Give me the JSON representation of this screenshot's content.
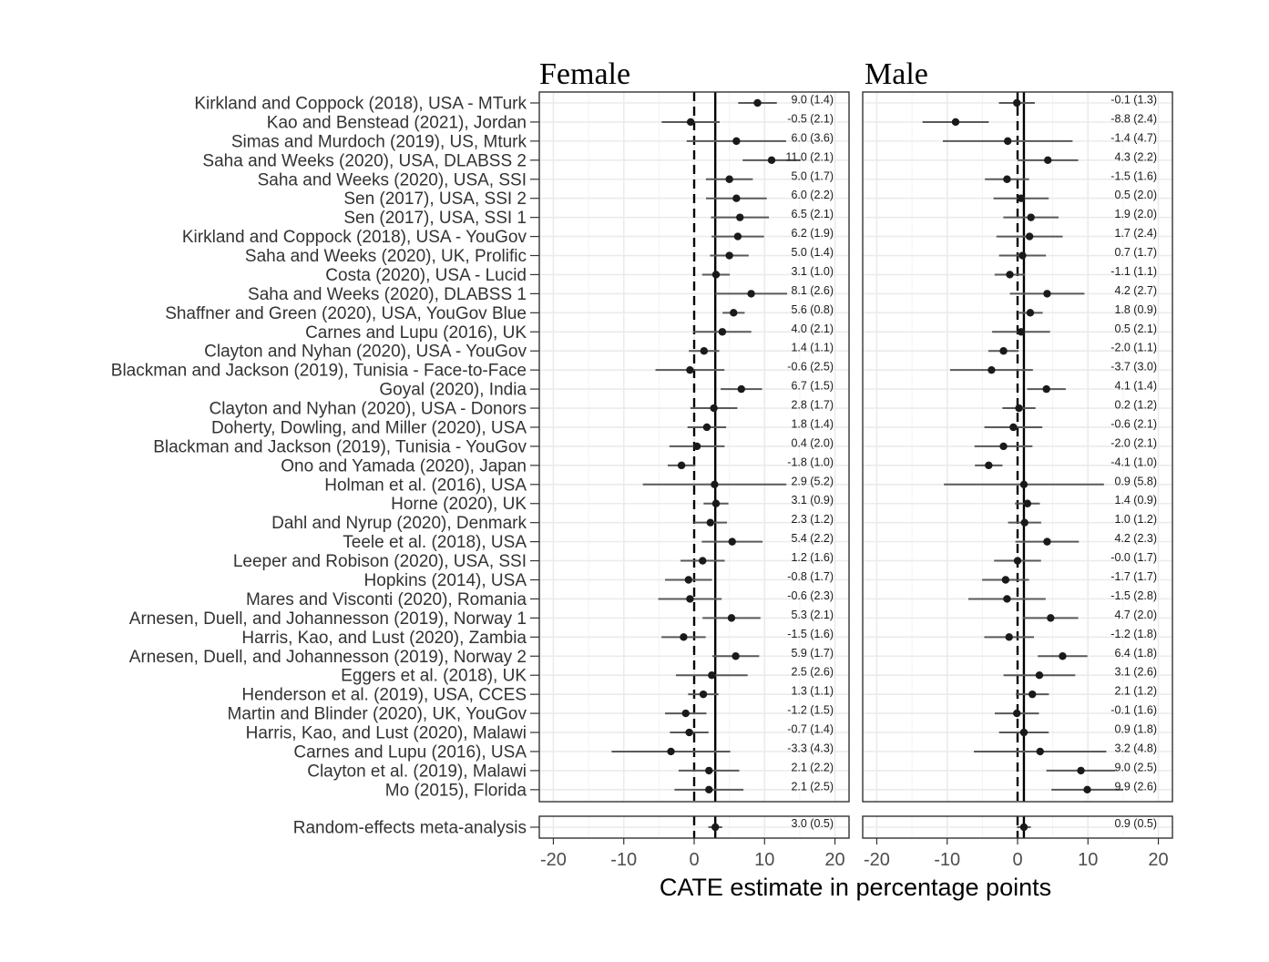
{
  "chart_data": {
    "type": "forest",
    "xlabel": "CATE estimate in percentage points",
    "xlim": [
      -22,
      22
    ],
    "xticks": [
      -20,
      -10,
      0,
      10,
      20
    ],
    "grid": true,
    "panels": [
      "Female",
      "Male"
    ],
    "studies": [
      {
        "name": "Kirkland and Coppock (2018), USA - MTurk",
        "female": {
          "est": 9.0,
          "se": 1.4,
          "label": "9.0 (1.4)"
        },
        "male": {
          "est": -0.1,
          "se": 1.3,
          "label": "-0.1 (1.3)"
        }
      },
      {
        "name": "Kao and Benstead (2021), Jordan",
        "female": {
          "est": -0.5,
          "se": 2.1,
          "label": "-0.5 (2.1)"
        },
        "male": {
          "est": -8.8,
          "se": 2.4,
          "label": "-8.8 (2.4)"
        }
      },
      {
        "name": "Simas and Murdoch (2019), US, Mturk",
        "female": {
          "est": 6.0,
          "se": 3.6,
          "label": "6.0 (3.6)"
        },
        "male": {
          "est": -1.4,
          "se": 4.7,
          "label": "-1.4 (4.7)"
        }
      },
      {
        "name": "Saha and Weeks (2020), USA, DLABSS 2",
        "female": {
          "est": 11.0,
          "se": 2.1,
          "label": "11.0 (2.1)"
        },
        "male": {
          "est": 4.3,
          "se": 2.2,
          "label": "4.3 (2.2)"
        }
      },
      {
        "name": "Saha and Weeks (2020), USA, SSI",
        "female": {
          "est": 5.0,
          "se": 1.7,
          "label": "5.0 (1.7)"
        },
        "male": {
          "est": -1.5,
          "se": 1.6,
          "label": "-1.5 (1.6)"
        }
      },
      {
        "name": "Sen (2017), USA, SSI 2",
        "female": {
          "est": 6.0,
          "se": 2.2,
          "label": "6.0 (2.2)"
        },
        "male": {
          "est": 0.5,
          "se": 2.0,
          "label": "0.5 (2.0)"
        }
      },
      {
        "name": "Sen (2017), USA, SSI 1",
        "female": {
          "est": 6.5,
          "se": 2.1,
          "label": "6.5 (2.1)"
        },
        "male": {
          "est": 1.9,
          "se": 2.0,
          "label": "1.9 (2.0)"
        }
      },
      {
        "name": "Kirkland and Coppock (2018), USA - YouGov",
        "female": {
          "est": 6.2,
          "se": 1.9,
          "label": "6.2 (1.9)"
        },
        "male": {
          "est": 1.7,
          "se": 2.4,
          "label": "1.7 (2.4)"
        }
      },
      {
        "name": "Saha and Weeks (2020), UK, Prolific",
        "female": {
          "est": 5.0,
          "se": 1.4,
          "label": "5.0 (1.4)"
        },
        "male": {
          "est": 0.7,
          "se": 1.7,
          "label": "0.7 (1.7)"
        }
      },
      {
        "name": "Costa (2020), USA - Lucid",
        "female": {
          "est": 3.1,
          "se": 1.0,
          "label": "3.1 (1.0)"
        },
        "male": {
          "est": -1.1,
          "se": 1.1,
          "label": "-1.1 (1.1)"
        }
      },
      {
        "name": "Saha and Weeks (2020), DLABSS 1",
        "female": {
          "est": 8.1,
          "se": 2.6,
          "label": "8.1 (2.6)"
        },
        "male": {
          "est": 4.2,
          "se": 2.7,
          "label": "4.2 (2.7)"
        }
      },
      {
        "name": "Shaffner and Green (2020), USA, YouGov Blue",
        "female": {
          "est": 5.6,
          "se": 0.8,
          "label": "5.6 (0.8)"
        },
        "male": {
          "est": 1.8,
          "se": 0.9,
          "label": "1.8 (0.9)"
        }
      },
      {
        "name": "Carnes and Lupu (2016), UK",
        "female": {
          "est": 4.0,
          "se": 2.1,
          "label": "4.0 (2.1)"
        },
        "male": {
          "est": 0.5,
          "se": 2.1,
          "label": "0.5 (2.1)"
        }
      },
      {
        "name": "Clayton and Nyhan (2020), USA - YouGov",
        "female": {
          "est": 1.4,
          "se": 1.1,
          "label": "1.4 (1.1)"
        },
        "male": {
          "est": -2.0,
          "se": 1.1,
          "label": "-2.0 (1.1)"
        }
      },
      {
        "name": "Blackman and Jackson (2019), Tunisia - Face-to-Face",
        "female": {
          "est": -0.6,
          "se": 2.5,
          "label": "-0.6 (2.5)"
        },
        "male": {
          "est": -3.7,
          "se": 3.0,
          "label": "-3.7 (3.0)"
        }
      },
      {
        "name": "Goyal (2020), India",
        "female": {
          "est": 6.7,
          "se": 1.5,
          "label": "6.7 (1.5)"
        },
        "male": {
          "est": 4.1,
          "se": 1.4,
          "label": "4.1 (1.4)"
        }
      },
      {
        "name": "Clayton and Nyhan (2020), USA - Donors",
        "female": {
          "est": 2.8,
          "se": 1.7,
          "label": "2.8 (1.7)"
        },
        "male": {
          "est": 0.2,
          "se": 1.2,
          "label": "0.2 (1.2)"
        }
      },
      {
        "name": "Doherty, Dowling, and Miller (2020), USA",
        "female": {
          "est": 1.8,
          "se": 1.4,
          "label": "1.8 (1.4)"
        },
        "male": {
          "est": -0.6,
          "se": 2.1,
          "label": "-0.6 (2.1)"
        }
      },
      {
        "name": "Blackman and Jackson (2019), Tunisia - YouGov",
        "female": {
          "est": 0.4,
          "se": 2.0,
          "label": "0.4 (2.0)"
        },
        "male": {
          "est": -2.0,
          "se": 2.1,
          "label": "-2.0 (2.1)"
        }
      },
      {
        "name": "Ono and Yamada (2020), Japan",
        "female": {
          "est": -1.8,
          "se": 1.0,
          "label": "-1.8 (1.0)"
        },
        "male": {
          "est": -4.1,
          "se": 1.0,
          "label": "-4.1 (1.0)"
        }
      },
      {
        "name": "Holman et al. (2016), USA",
        "female": {
          "est": 2.9,
          "se": 5.2,
          "label": "2.9 (5.2)"
        },
        "male": {
          "est": 0.9,
          "se": 5.8,
          "label": "0.9 (5.8)"
        }
      },
      {
        "name": "Horne (2020), UK",
        "female": {
          "est": 3.1,
          "se": 0.9,
          "label": "3.1 (0.9)"
        },
        "male": {
          "est": 1.4,
          "se": 0.9,
          "label": "1.4 (0.9)"
        }
      },
      {
        "name": "Dahl and Nyrup (2020), Denmark",
        "female": {
          "est": 2.3,
          "se": 1.2,
          "label": "2.3 (1.2)"
        },
        "male": {
          "est": 1.0,
          "se": 1.2,
          "label": "1.0 (1.2)"
        }
      },
      {
        "name": "Teele et al. (2018), USA",
        "female": {
          "est": 5.4,
          "se": 2.2,
          "label": "5.4 (2.2)"
        },
        "male": {
          "est": 4.2,
          "se": 2.3,
          "label": "4.2 (2.3)"
        }
      },
      {
        "name": "Leeper and Robison (2020), USA, SSI",
        "female": {
          "est": 1.2,
          "se": 1.6,
          "label": "1.2 (1.6)"
        },
        "male": {
          "est": -0.0,
          "se": 1.7,
          "label": "-0.0 (1.7)"
        }
      },
      {
        "name": "Hopkins (2014), USA",
        "female": {
          "est": -0.8,
          "se": 1.7,
          "label": "-0.8 (1.7)"
        },
        "male": {
          "est": -1.7,
          "se": 1.7,
          "label": "-1.7 (1.7)"
        }
      },
      {
        "name": "Mares and Visconti (2020), Romania",
        "female": {
          "est": -0.6,
          "se": 2.3,
          "label": "-0.6 (2.3)"
        },
        "male": {
          "est": -1.5,
          "se": 2.8,
          "label": "-1.5 (2.8)"
        }
      },
      {
        "name": "Arnesen, Duell, and Johannesson (2019), Norway 1",
        "female": {
          "est": 5.3,
          "se": 2.1,
          "label": "5.3 (2.1)"
        },
        "male": {
          "est": 4.7,
          "se": 2.0,
          "label": "4.7 (2.0)"
        }
      },
      {
        "name": "Harris, Kao, and Lust (2020), Zambia",
        "female": {
          "est": -1.5,
          "se": 1.6,
          "label": "-1.5 (1.6)"
        },
        "male": {
          "est": -1.2,
          "se": 1.8,
          "label": "-1.2 (1.8)"
        }
      },
      {
        "name": "Arnesen, Duell, and Johannesson (2019), Norway 2",
        "female": {
          "est": 5.9,
          "se": 1.7,
          "label": "5.9 (1.7)"
        },
        "male": {
          "est": 6.4,
          "se": 1.8,
          "label": "6.4 (1.8)"
        }
      },
      {
        "name": "Eggers et al. (2018), UK",
        "female": {
          "est": 2.5,
          "se": 2.6,
          "label": "2.5 (2.6)"
        },
        "male": {
          "est": 3.1,
          "se": 2.6,
          "label": "3.1 (2.6)"
        }
      },
      {
        "name": "Henderson et al. (2019), USA, CCES",
        "female": {
          "est": 1.3,
          "se": 1.1,
          "label": "1.3 (1.1)"
        },
        "male": {
          "est": 2.1,
          "se": 1.2,
          "label": "2.1 (1.2)"
        }
      },
      {
        "name": "Martin and Blinder (2020), UK, YouGov",
        "female": {
          "est": -1.2,
          "se": 1.5,
          "label": "-1.2 (1.5)"
        },
        "male": {
          "est": -0.1,
          "se": 1.6,
          "label": "-0.1 (1.6)"
        }
      },
      {
        "name": "Harris, Kao, and Lust (2020), Malawi",
        "female": {
          "est": -0.7,
          "se": 1.4,
          "label": "-0.7 (1.4)"
        },
        "male": {
          "est": 0.9,
          "se": 1.8,
          "label": "0.9 (1.8)"
        }
      },
      {
        "name": "Carnes and Lupu (2016), USA",
        "female": {
          "est": -3.3,
          "se": 4.3,
          "label": "-3.3 (4.3)"
        },
        "male": {
          "est": 3.2,
          "se": 4.8,
          "label": "3.2 (4.8)"
        }
      },
      {
        "name": "Clayton et al. (2019), Malawi",
        "female": {
          "est": 2.1,
          "se": 2.2,
          "label": "2.1 (2.2)"
        },
        "male": {
          "est": 9.0,
          "se": 2.5,
          "label": "9.0 (2.5)"
        }
      },
      {
        "name": "Mo (2015), Florida",
        "female": {
          "est": 2.1,
          "se": 2.5,
          "label": "2.1 (2.5)"
        },
        "male": {
          "est": 9.9,
          "se": 2.6,
          "label": "9.9 (2.6)"
        }
      }
    ],
    "meta": {
      "name": "Random-effects meta-analysis",
      "female": {
        "est": 3.0,
        "se": 0.5,
        "label": "3.0 (0.5)"
      },
      "male": {
        "est": 0.9,
        "se": 0.5,
        "label": "0.9 (0.5)"
      }
    },
    "reference_line": 0
  },
  "colors": {
    "point": "#1a1a1a",
    "ci": "#595959",
    "grid": "#ebebeb",
    "panel_border": "#333333"
  }
}
